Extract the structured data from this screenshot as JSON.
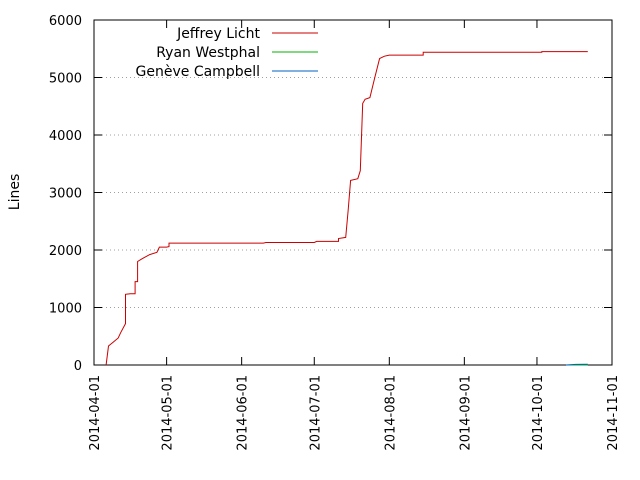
{
  "chart_data": {
    "type": "line",
    "ylabel": "Lines",
    "xlabel": "",
    "title": "",
    "x_ticks": [
      "2014-04-01",
      "2014-05-01",
      "2014-06-01",
      "2014-07-01",
      "2014-08-01",
      "2014-09-01",
      "2014-10-01",
      "2014-11-01"
    ],
    "y_ticks": [
      0,
      1000,
      2000,
      3000,
      4000,
      5000,
      6000
    ],
    "xlim": [
      "2014-04-01",
      "2014-11-01"
    ],
    "ylim": [
      0,
      6000
    ],
    "grid": "horizontal-dotted",
    "legend": "top-left",
    "series": [
      {
        "name": "Jeffrey Licht",
        "color": "#cc0000",
        "points": [
          [
            "2014-04-06",
            0
          ],
          [
            "2014-04-07",
            330
          ],
          [
            "2014-04-09",
            400
          ],
          [
            "2014-04-11",
            470
          ],
          [
            "2014-04-12",
            560
          ],
          [
            "2014-04-14",
            720
          ],
          [
            "2014-04-14",
            1230
          ],
          [
            "2014-04-16",
            1240
          ],
          [
            "2014-04-18",
            1240
          ],
          [
            "2014-04-18",
            1450
          ],
          [
            "2014-04-19",
            1450
          ],
          [
            "2014-04-19",
            1800
          ],
          [
            "2014-04-21",
            1850
          ],
          [
            "2014-04-24",
            1920
          ],
          [
            "2014-04-27",
            1960
          ],
          [
            "2014-04-28",
            2050
          ],
          [
            "2014-05-01",
            2050
          ],
          [
            "2014-05-02",
            2060
          ],
          [
            "2014-05-02",
            2120
          ],
          [
            "2014-05-20",
            2120
          ],
          [
            "2014-06-10",
            2120
          ],
          [
            "2014-06-11",
            2130
          ],
          [
            "2014-06-25",
            2130
          ],
          [
            "2014-07-01",
            2130
          ],
          [
            "2014-07-02",
            2150
          ],
          [
            "2014-07-11",
            2150
          ],
          [
            "2014-07-11",
            2200
          ],
          [
            "2014-07-14",
            2220
          ],
          [
            "2014-07-15",
            2700
          ],
          [
            "2014-07-16",
            3210
          ],
          [
            "2014-07-19",
            3240
          ],
          [
            "2014-07-20",
            3380
          ],
          [
            "2014-07-21",
            4550
          ],
          [
            "2014-07-22",
            4620
          ],
          [
            "2014-07-24",
            4650
          ],
          [
            "2014-07-26",
            5000
          ],
          [
            "2014-07-28",
            5330
          ],
          [
            "2014-07-30",
            5370
          ],
          [
            "2014-08-01",
            5390
          ],
          [
            "2014-08-15",
            5390
          ],
          [
            "2014-08-15",
            5440
          ],
          [
            "2014-09-15",
            5440
          ],
          [
            "2014-10-03",
            5440
          ],
          [
            "2014-10-03",
            5450
          ],
          [
            "2014-10-22",
            5450
          ]
        ]
      },
      {
        "name": "Ryan Westphal",
        "color": "#00b000",
        "points": [
          [
            "2014-10-13",
            0
          ],
          [
            "2014-10-22",
            0
          ]
        ]
      },
      {
        "name": "Genève Campbell",
        "color": "#0060c0",
        "points": [
          [
            "2014-10-13",
            0
          ],
          [
            "2014-10-17",
            10
          ],
          [
            "2014-10-22",
            12
          ]
        ]
      }
    ]
  }
}
